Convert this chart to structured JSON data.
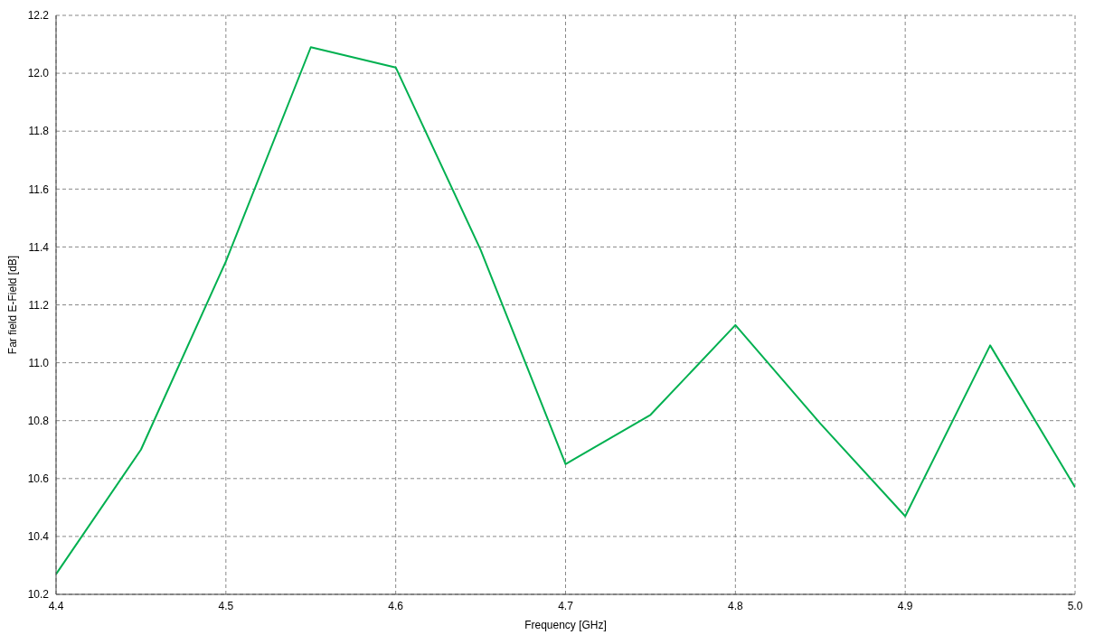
{
  "chart_data": {
    "type": "line",
    "xlabel": "Frequency [GHz]",
    "ylabel": "Far field E-Field [dB]",
    "x": [
      4.4,
      4.45,
      4.5,
      4.55,
      4.6,
      4.65,
      4.7,
      4.75,
      4.8,
      4.85,
      4.9,
      4.95,
      5.0
    ],
    "series": [
      {
        "color": "#00b050",
        "values": [
          10.27,
          10.7,
          11.35,
          12.09,
          12.02,
          11.39,
          10.65,
          10.82,
          11.13,
          10.79,
          10.47,
          11.06,
          10.57
        ]
      }
    ],
    "xlim": [
      4.4,
      5.0
    ],
    "xticks": [
      4.4,
      4.5,
      4.6,
      4.7,
      4.8,
      4.9,
      {
        "value": 5.0,
        "label": "5.0"
      }
    ],
    "ylim": [
      10.2,
      12.2
    ],
    "yticks": [
      10.2,
      10.4,
      10.6,
      10.8,
      {
        "value": 11.0,
        "label": "11.0"
      },
      11.2,
      11.4,
      11.6,
      11.8,
      {
        "value": 12.0,
        "label": "12.0"
      },
      12.2
    ],
    "grid": true,
    "marker": "none",
    "line_style": "solid",
    "legend": false
  }
}
